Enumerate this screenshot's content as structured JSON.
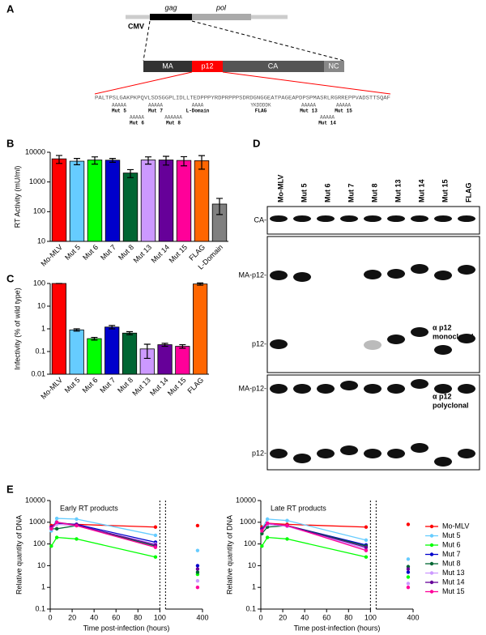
{
  "panel_labels": [
    "A",
    "B",
    "C",
    "D",
    "E"
  ],
  "diagram": {
    "genes": [
      "gag",
      "pol"
    ],
    "promoter": "CMV",
    "domains": [
      "MA",
      "p12",
      "CA",
      "NC"
    ],
    "sequence": "PALTPSLGAKPKPQVLSDSGGPLIDLLTEDPPPYRDPRPPPSDRDGNGGEATPAGEAPDPSPMASRLRGRREPPVADSTTSQAF",
    "mutations": [
      {
        "site": "AAAAA",
        "label": "Mut 5"
      },
      {
        "site": "AAAAA",
        "label": "Mut 6"
      },
      {
        "site": "AAAAA",
        "label": "Mut 7"
      },
      {
        "site": "AAAAAA",
        "label": "Mut 8"
      },
      {
        "site": "AAAA",
        "label": "L-Domain"
      },
      {
        "site": "YKDDDDK",
        "label": "FLAG"
      },
      {
        "site": "AAAAA",
        "label": "Mut 13"
      },
      {
        "site": "AAAAA",
        "label": "Mut 14"
      },
      {
        "site": "AAAAA",
        "label": "Mut 15"
      }
    ]
  },
  "rt_activity": {
    "type": "bar",
    "log": true,
    "ylabel": "RT Activity (mU/ml)",
    "categories": [
      "Mo-MLV",
      "Mut 5",
      "Mut 6",
      "Mut 7",
      "Mut 8",
      "Mut 13",
      "Mut 14",
      "Mut 15",
      "FLAG",
      "L-Domain"
    ],
    "values": [
      6000,
      5000,
      5500,
      5400,
      2000,
      5500,
      5500,
      5300,
      5200,
      180
    ],
    "errors": [
      1800,
      1200,
      1500,
      800,
      600,
      1500,
      1800,
      1800,
      2500,
      100
    ],
    "colors": [
      "#ff0000",
      "#66ccff",
      "#00ff00",
      "#0000cc",
      "#006633",
      "#cc99ff",
      "#660099",
      "#ff0099",
      "#ff6600",
      "#808080"
    ],
    "ylim": [
      10,
      10000
    ],
    "yticks": [
      10,
      100,
      1000,
      10000
    ]
  },
  "infectivity": {
    "type": "bar",
    "log": true,
    "ylabel": "Infectivity (% of wild type)",
    "categories": [
      "Mo-MLV",
      "Mut 5",
      "Mut 6",
      "Mut 7",
      "Mut 8",
      "Mut 13",
      "Mut 14",
      "Mut 15",
      "FLAG"
    ],
    "values": [
      100,
      0.9,
      0.37,
      1.2,
      0.65,
      0.13,
      0.2,
      0.17,
      95
    ],
    "errors": [
      0,
      0.1,
      0.05,
      0.2,
      0.1,
      0.08,
      0.03,
      0.03,
      10
    ],
    "colors": [
      "#ff0000",
      "#66ccff",
      "#00ff00",
      "#0000cc",
      "#006633",
      "#cc99ff",
      "#660099",
      "#ff0099",
      "#ff6600"
    ],
    "ylim": [
      0.01,
      100
    ],
    "yticks": [
      0.01,
      0.1,
      1,
      10,
      100
    ]
  },
  "western": {
    "lanes": [
      "Mo-MLV",
      "Mut 5",
      "Mut 6",
      "Mut 7",
      "Mut 8",
      "Mut 13",
      "Mut 14",
      "Mut 15",
      "FLAG"
    ],
    "bands": {
      "ca": "CA-",
      "ma_p12": "MA-p12-",
      "p12": "p12-"
    },
    "antibodies": [
      [
        "α p12",
        "monoclonal"
      ],
      [
        "α p12",
        "polyclonal"
      ]
    ]
  },
  "qpcr": {
    "type": "line",
    "log": true,
    "x": [
      1,
      6,
      24,
      96,
      360
    ],
    "xlim_segments": [
      [
        0,
        100
      ],
      [
        100,
        400
      ]
    ],
    "xticks": [
      0,
      20,
      40,
      60,
      80,
      100,
      400
    ],
    "ylim": [
      0.1,
      10000
    ],
    "yticks": [
      0.1,
      1,
      10,
      100,
      1000,
      10000
    ],
    "xlabel": "Time post-infection (hours)",
    "ylabel": "Relative quantity of DNA",
    "series": [
      {
        "name": "Mo-MLV",
        "color": "#ff0000"
      },
      {
        "name": "Mut 5",
        "color": "#66ccff"
      },
      {
        "name": "Mut 6",
        "color": "#00ff00"
      },
      {
        "name": "Mut 7",
        "color": "#0000cc"
      },
      {
        "name": "Mut 8",
        "color": "#006633"
      },
      {
        "name": "Mut 13",
        "color": "#cc99ff"
      },
      {
        "name": "Mut 14",
        "color": "#660099"
      },
      {
        "name": "Mut 15",
        "color": "#ff0099"
      }
    ],
    "charts": [
      {
        "title": "Early RT products",
        "values": [
          [
            700,
            900,
            800,
            600,
            700
          ],
          [
            400,
            1500,
            1400,
            250,
            50
          ],
          [
            80,
            200,
            170,
            25,
            4
          ],
          [
            600,
            900,
            800,
            120,
            10
          ],
          [
            500,
            500,
            700,
            80,
            5
          ],
          [
            500,
            800,
            700,
            100,
            2
          ],
          [
            600,
            1000,
            750,
            90,
            7
          ],
          [
            500,
            1000,
            700,
            70,
            1
          ]
        ]
      },
      {
        "title": "Late RT products",
        "values": [
          [
            600,
            900,
            800,
            600,
            800
          ],
          [
            500,
            1400,
            1200,
            150,
            20
          ],
          [
            80,
            200,
            170,
            25,
            3
          ],
          [
            500,
            800,
            700,
            90,
            5
          ],
          [
            300,
            600,
            700,
            80,
            9
          ],
          [
            400,
            800,
            650,
            60,
            1.5
          ],
          [
            500,
            900,
            700,
            70,
            7
          ],
          [
            400,
            900,
            700,
            50,
            1
          ]
        ]
      }
    ]
  }
}
